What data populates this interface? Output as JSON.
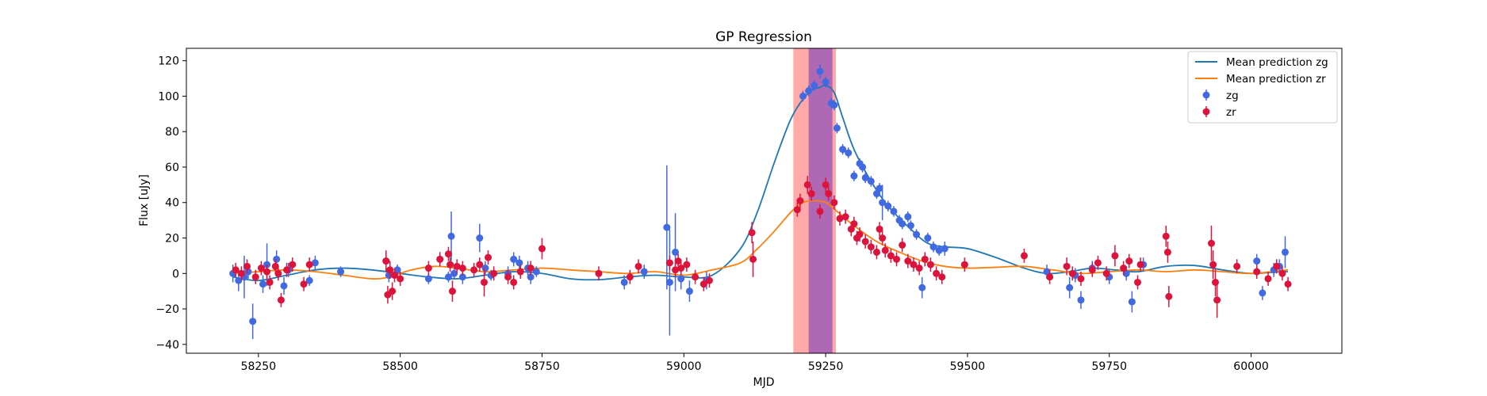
{
  "chart_data": {
    "type": "scatter",
    "title": "GP Regression",
    "xlabel": "MJD",
    "ylabel": "Flux [uJy]",
    "xlim": [
      58123,
      60160
    ],
    "ylim": [
      -45,
      127
    ],
    "xticks": [
      58250,
      58500,
      58750,
      59000,
      59250,
      59500,
      59750,
      60000
    ],
    "yticks": [
      -40,
      -20,
      0,
      20,
      40,
      60,
      80,
      100,
      120
    ],
    "grid": false,
    "legend_position": "top-right",
    "legend": [
      "Mean prediction zg",
      "Mean prediction zr",
      "zg",
      "zr"
    ],
    "colors": {
      "zg_line": "#1f77b4",
      "zr_line": "#ff7f0e",
      "zg_points": "#4169e1",
      "zr_points": "#dc143c",
      "span_red": "#ff6f6f",
      "span_purple": "#9b59b6"
    },
    "shaded_regions": [
      {
        "x0": 59193,
        "x1": 59268,
        "color": "#ff6f6f",
        "opacity": 0.6
      },
      {
        "x0": 59220,
        "x1": 59262,
        "color": "#9b59b6",
        "opacity": 0.8
      }
    ],
    "series": [
      {
        "name": "Mean prediction zg",
        "kind": "line",
        "color": "#1f77b4",
        "x": [
          58205,
          58250,
          58300,
          58350,
          58400,
          58450,
          58500,
          58550,
          58600,
          58650,
          58700,
          58750,
          58800,
          58850,
          58900,
          58950,
          59000,
          59050,
          59100,
          59130,
          59160,
          59190,
          59220,
          59240,
          59250,
          59265,
          59280,
          59300,
          59330,
          59360,
          59400,
          59430,
          59460,
          59500,
          59550,
          59600,
          59640,
          59680,
          59720,
          59760,
          59800,
          59850,
          59900,
          59950,
          60000,
          60050,
          60065
        ],
        "y": [
          -2,
          -4,
          -1,
          2,
          3,
          2,
          0,
          -2,
          -3,
          -1,
          1,
          0,
          -3,
          -3.5,
          -2,
          -1,
          -2,
          -1,
          14,
          35,
          63,
          88,
          102,
          105,
          106,
          102,
          88,
          70,
          52,
          38,
          25,
          17,
          15,
          14,
          9,
          3,
          0,
          1,
          3,
          2,
          1,
          4,
          4.5,
          2,
          0,
          1,
          1
        ]
      },
      {
        "name": "Mean prediction zr",
        "kind": "line",
        "color": "#ff7f0e",
        "x": [
          58205,
          58250,
          58300,
          58350,
          58400,
          58450,
          58480,
          58520,
          58560,
          58600,
          58650,
          58700,
          58750,
          58800,
          58850,
          58900,
          58950,
          59000,
          59050,
          59100,
          59130,
          59160,
          59190,
          59210,
          59230,
          59250,
          59270,
          59300,
          59340,
          59380,
          59420,
          59460,
          59500,
          59550,
          59600,
          59650,
          59700,
          59750,
          59800,
          59850,
          59900,
          59950,
          60000,
          60065
        ],
        "y": [
          0,
          1,
          2,
          1,
          -1,
          -3,
          -2,
          2,
          4,
          3,
          1,
          2,
          3,
          2,
          1,
          0,
          1,
          -1,
          2,
          6,
          14,
          24,
          35,
          40,
          41,
          40,
          35,
          27,
          18,
          12,
          7,
          4,
          3,
          3.5,
          4,
          2,
          0,
          1,
          2,
          1,
          2,
          1,
          0,
          2
        ]
      },
      {
        "name": "zg",
        "kind": "errorbar",
        "color": "#4169e1",
        "x": [
          58205,
          58215,
          58225,
          58232,
          58240,
          58258,
          58265,
          58282,
          58295,
          58303,
          58340,
          58350,
          58395,
          58475,
          58480,
          58495,
          58550,
          58570,
          58585,
          58590,
          58595,
          58610,
          58640,
          58650,
          58660,
          58690,
          58700,
          58710,
          58725,
          58730,
          58740,
          58895,
          58930,
          58970,
          58975,
          58985,
          58995,
          59010,
          59040,
          59210,
          59220,
          59230,
          59240,
          59250,
          59260,
          59265,
          59270,
          59280,
          59290,
          59300,
          59310,
          59315,
          59320,
          59330,
          59340,
          59345,
          59350,
          59360,
          59370,
          59380,
          59385,
          59395,
          59400,
          59410,
          59420,
          59430,
          59440,
          59450,
          59460,
          59640,
          59680,
          59690,
          59700,
          59720,
          59750,
          59780,
          59790,
          59810,
          60010,
          60020,
          60040,
          60050,
          60060
        ],
        "y": [
          0,
          -4,
          -2,
          1,
          -27,
          -6,
          5,
          8,
          -7,
          2,
          -4,
          6,
          1,
          7,
          -1,
          2,
          -3,
          8,
          -2,
          21,
          0,
          -2,
          20,
          3,
          -1,
          0,
          8,
          6,
          3,
          -2,
          1,
          -5,
          1,
          26,
          -5,
          12,
          -3,
          -10,
          -4,
          100,
          103,
          106,
          114,
          108,
          96,
          95,
          82,
          70,
          68,
          55,
          62,
          60,
          54,
          52,
          45,
          48,
          40,
          38,
          35,
          30,
          28,
          32,
          27,
          22,
          -8,
          20,
          15,
          13,
          14,
          1,
          -8,
          -1,
          -15,
          3,
          -2,
          0,
          -16,
          5,
          7,
          -11,
          2,
          4,
          12
        ],
        "err": [
          5,
          6,
          12,
          4,
          10,
          5,
          12,
          5,
          5,
          4,
          3,
          4,
          3,
          5,
          4,
          3,
          3,
          4,
          3,
          14,
          3,
          4,
          8,
          4,
          3,
          4,
          4,
          4,
          4,
          4,
          3,
          4,
          4,
          35,
          30,
          22,
          6,
          6,
          5,
          3,
          3,
          3,
          4,
          3,
          3,
          3,
          3,
          3,
          3,
          3,
          3,
          3,
          3,
          3,
          3,
          3,
          10,
          3,
          3,
          3,
          3,
          3,
          3,
          3,
          6,
          3,
          3,
          3,
          4,
          4,
          6,
          4,
          5,
          4,
          4,
          4,
          6,
          4,
          4,
          4,
          4,
          4,
          9
        ]
      },
      {
        "name": "zr",
        "kind": "errorbar",
        "color": "#dc143c",
        "x": [
          58210,
          58220,
          58230,
          58245,
          58255,
          58265,
          58270,
          58280,
          58285,
          58290,
          58300,
          58310,
          58330,
          58340,
          58475,
          58478,
          58482,
          58486,
          58490,
          58500,
          58550,
          58570,
          58585,
          58588,
          58592,
          58600,
          58610,
          58630,
          58640,
          58648,
          58655,
          58665,
          58690,
          58700,
          58712,
          58730,
          58750,
          58850,
          58905,
          58920,
          58975,
          58985,
          58990,
          58995,
          59005,
          59020,
          59035,
          59045,
          59120,
          59122,
          59200,
          59205,
          59218,
          59225,
          59240,
          59250,
          59255,
          59265,
          59275,
          59285,
          59295,
          59300,
          59305,
          59310,
          59320,
          59330,
          59340,
          59345,
          59350,
          59355,
          59365,
          59375,
          59385,
          59395,
          59405,
          59415,
          59425,
          59435,
          59445,
          59455,
          59495,
          59600,
          59645,
          59675,
          59685,
          59700,
          59720,
          59730,
          59745,
          59760,
          59775,
          59785,
          59800,
          59805,
          59850,
          59853,
          59855,
          59930,
          59933,
          59937,
          59940,
          59975,
          60010,
          60030,
          60045,
          60055,
          60065
        ],
        "y": [
          2,
          0,
          4,
          -2,
          3,
          1,
          -5,
          4,
          0,
          -15,
          2,
          5,
          -6,
          5,
          7,
          -12,
          2,
          -10,
          -1,
          -3,
          3,
          8,
          11,
          5,
          -10,
          4,
          3,
          2,
          5,
          -5,
          9,
          0,
          -2,
          -5,
          1,
          3,
          14,
          0,
          -2,
          4,
          6,
          2,
          7,
          3,
          5,
          -2,
          -6,
          -4,
          23,
          8,
          36,
          41,
          50,
          45,
          35,
          50,
          45,
          40,
          31,
          32,
          25,
          28,
          20,
          22,
          18,
          15,
          12,
          25,
          20,
          13,
          10,
          8,
          16,
          7,
          5,
          3,
          8,
          5,
          0,
          -2,
          5,
          10,
          -2,
          4,
          0,
          -3,
          2,
          6,
          0,
          10,
          3,
          7,
          -5,
          5,
          21,
          12,
          -13,
          17,
          5,
          -5,
          -15,
          4,
          1,
          -3,
          4,
          0,
          -6
        ],
        "err": [
          4,
          4,
          4,
          4,
          4,
          4,
          4,
          4,
          4,
          4,
          4,
          4,
          4,
          4,
          6,
          5,
          5,
          5,
          4,
          4,
          4,
          4,
          4,
          4,
          6,
          4,
          4,
          4,
          4,
          8,
          4,
          4,
          4,
          4,
          4,
          4,
          6,
          4,
          4,
          4,
          4,
          4,
          4,
          4,
          4,
          4,
          4,
          4,
          6,
          10,
          4,
          4,
          5,
          4,
          4,
          4,
          4,
          4,
          4,
          4,
          4,
          4,
          4,
          4,
          4,
          4,
          4,
          4,
          4,
          4,
          4,
          4,
          4,
          4,
          4,
          4,
          4,
          4,
          4,
          4,
          4,
          4,
          4,
          5,
          4,
          4,
          4,
          4,
          4,
          6,
          4,
          4,
          4,
          4,
          6,
          6,
          6,
          10,
          8,
          8,
          10,
          4,
          4,
          4,
          4,
          4,
          4
        ]
      }
    ]
  }
}
